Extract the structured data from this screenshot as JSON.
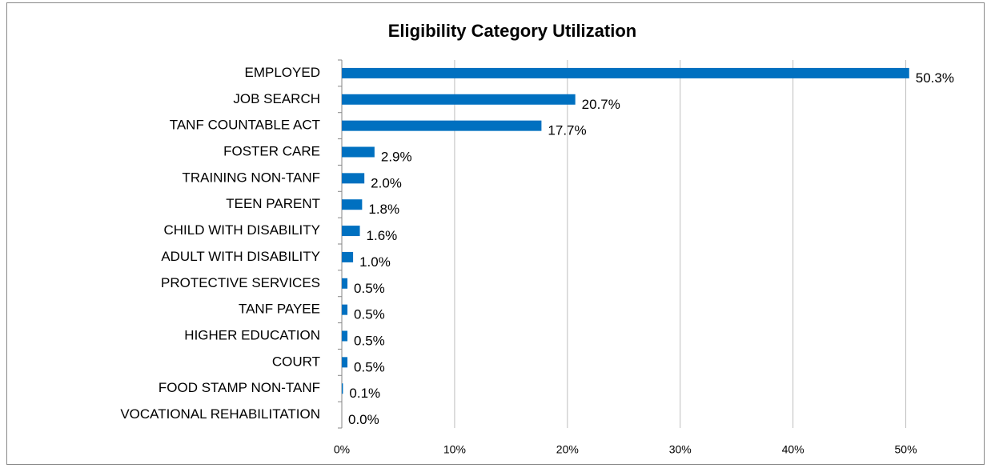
{
  "chart_data": {
    "type": "bar",
    "orientation": "horizontal",
    "title": "Eligibility Category Utilization",
    "categories": [
      "EMPLOYED",
      "JOB SEARCH",
      "TANF COUNTABLE ACT",
      "FOSTER CARE",
      "TRAINING NON-TANF",
      "TEEN PARENT",
      "CHILD WITH DISABILITY",
      "ADULT WITH DISABILITY",
      "PROTECTIVE SERVICES",
      "TANF PAYEE",
      "HIGHER EDUCATION",
      "COURT",
      "FOOD STAMP NON-TANF",
      "VOCATIONAL REHABILITATION"
    ],
    "values": [
      50.3,
      20.7,
      17.7,
      2.9,
      2.0,
      1.8,
      1.6,
      1.0,
      0.5,
      0.5,
      0.5,
      0.5,
      0.1,
      0.0
    ],
    "value_labels": [
      "50.3%",
      "20.7%",
      "17.7%",
      "2.9%",
      "2.0%",
      "1.8%",
      "1.6%",
      "1.0%",
      "0.5%",
      "0.5%",
      "0.5%",
      "0.5%",
      "0.1%",
      "0.0%"
    ],
    "color": "#0070c0",
    "xlim": [
      0,
      55
    ],
    "xticks": [
      {
        "value": 0,
        "label": "0%"
      },
      {
        "value": 10,
        "label": "10%"
      },
      {
        "value": 20,
        "label": "20%"
      },
      {
        "value": 30,
        "label": "30%"
      },
      {
        "value": 40,
        "label": "40%"
      },
      {
        "value": 50,
        "label": "50%"
      }
    ],
    "grid": true
  }
}
